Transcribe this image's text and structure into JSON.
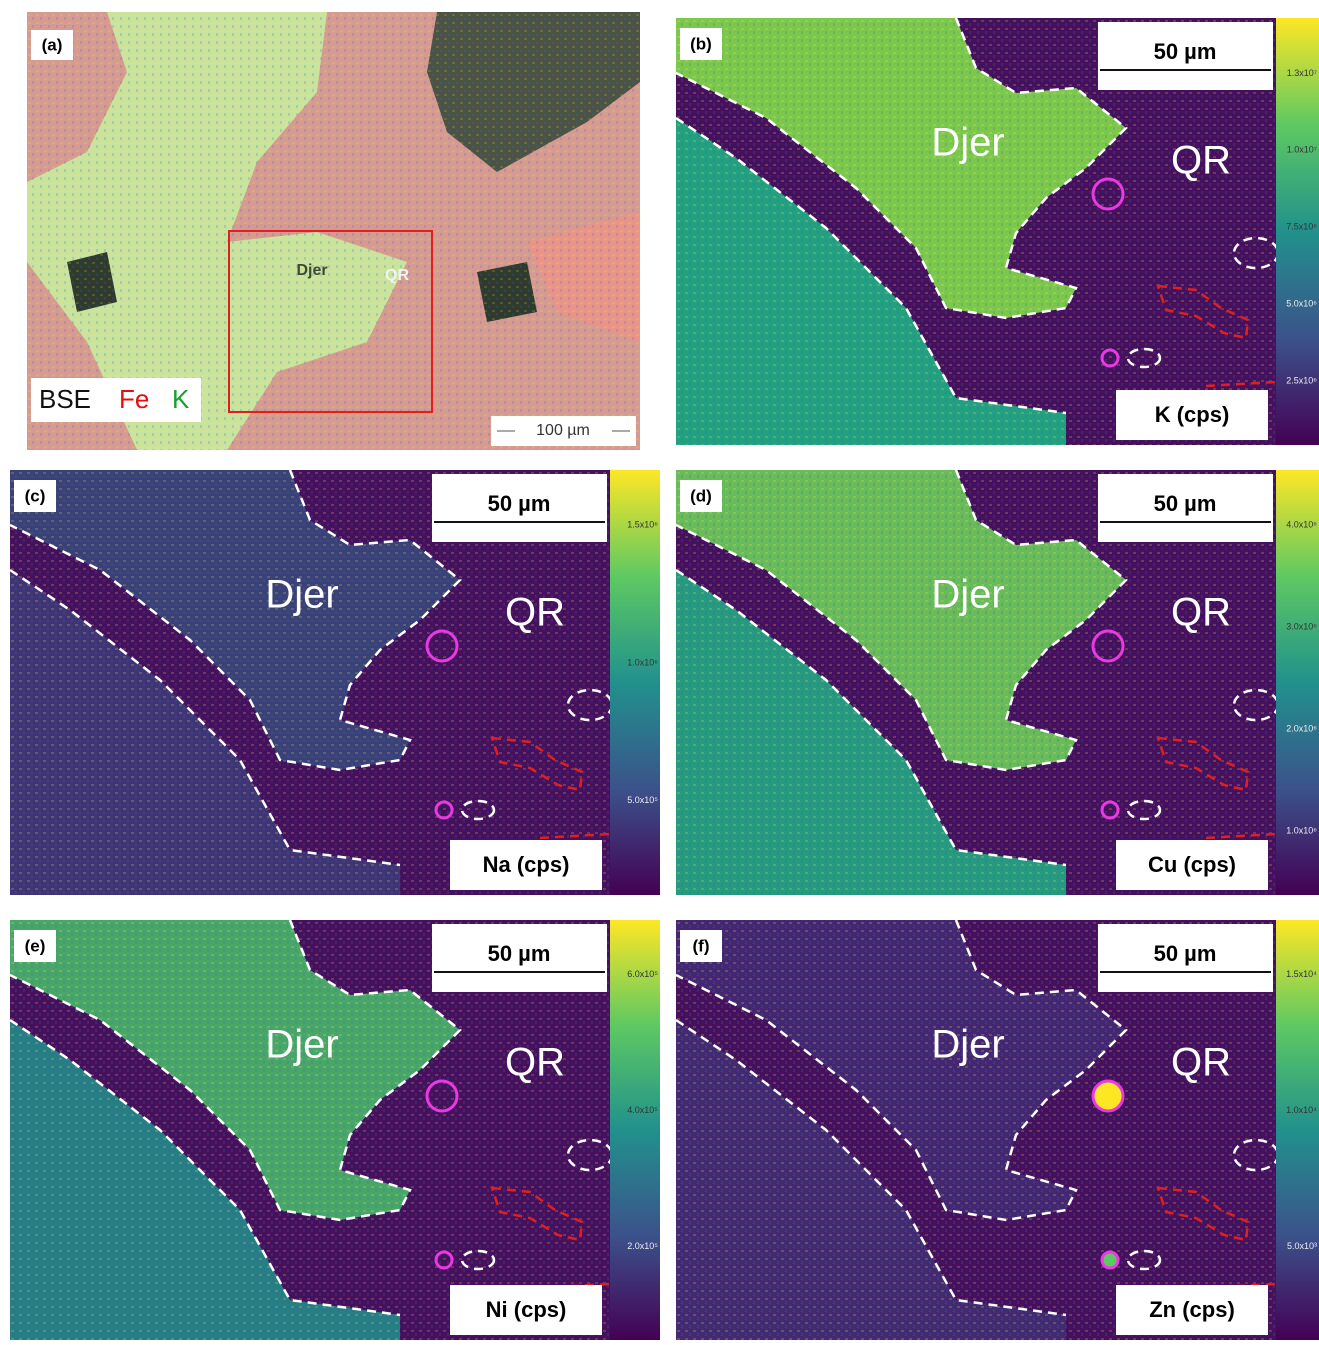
{
  "panels": [
    {
      "label": "(a)",
      "region_labels": [
        "Djer",
        "QR"
      ],
      "legend": [
        "BSE",
        "Fe",
        "K"
      ],
      "scale_bar": "100 µm"
    },
    {
      "label": "(b)",
      "scale_bar": "50 µm",
      "element": "K (cps)",
      "region_labels": [
        "Djer",
        "QR"
      ],
      "colorbar_ticks": [
        "1.3x10⁷",
        "1.0x10⁷",
        "7.5x10⁶",
        "5.0x10⁶",
        "2.5x10⁶"
      ]
    },
    {
      "label": "(c)",
      "scale_bar": "50 µm",
      "element": "Na (cps)",
      "region_labels": [
        "Djer",
        "QR"
      ],
      "colorbar_ticks": [
        "1.5x10⁶",
        "1.0x10⁶",
        "5.0x10⁵"
      ]
    },
    {
      "label": "(d)",
      "scale_bar": "50 µm",
      "element": "Cu (cps)",
      "region_labels": [
        "Djer",
        "QR"
      ],
      "colorbar_ticks": [
        "4.0x10⁶",
        "3.0x10⁶",
        "2.0x10⁶",
        "1.0x10⁶"
      ]
    },
    {
      "label": "(e)",
      "scale_bar": "50 µm",
      "element": "Ni (cps)",
      "region_labels": [
        "Djer",
        "QR"
      ],
      "colorbar_ticks": [
        "6.0x10⁵",
        "4.0x10⁵",
        "2.0x10⁵"
      ]
    },
    {
      "label": "(f)",
      "scale_bar": "50 µm",
      "element": "Zn (cps)",
      "region_labels": [
        "Djer",
        "QR"
      ],
      "colorbar_ticks": [
        "1.5x10⁴",
        "1.0x10⁴",
        "5.0x10³"
      ]
    }
  ]
}
